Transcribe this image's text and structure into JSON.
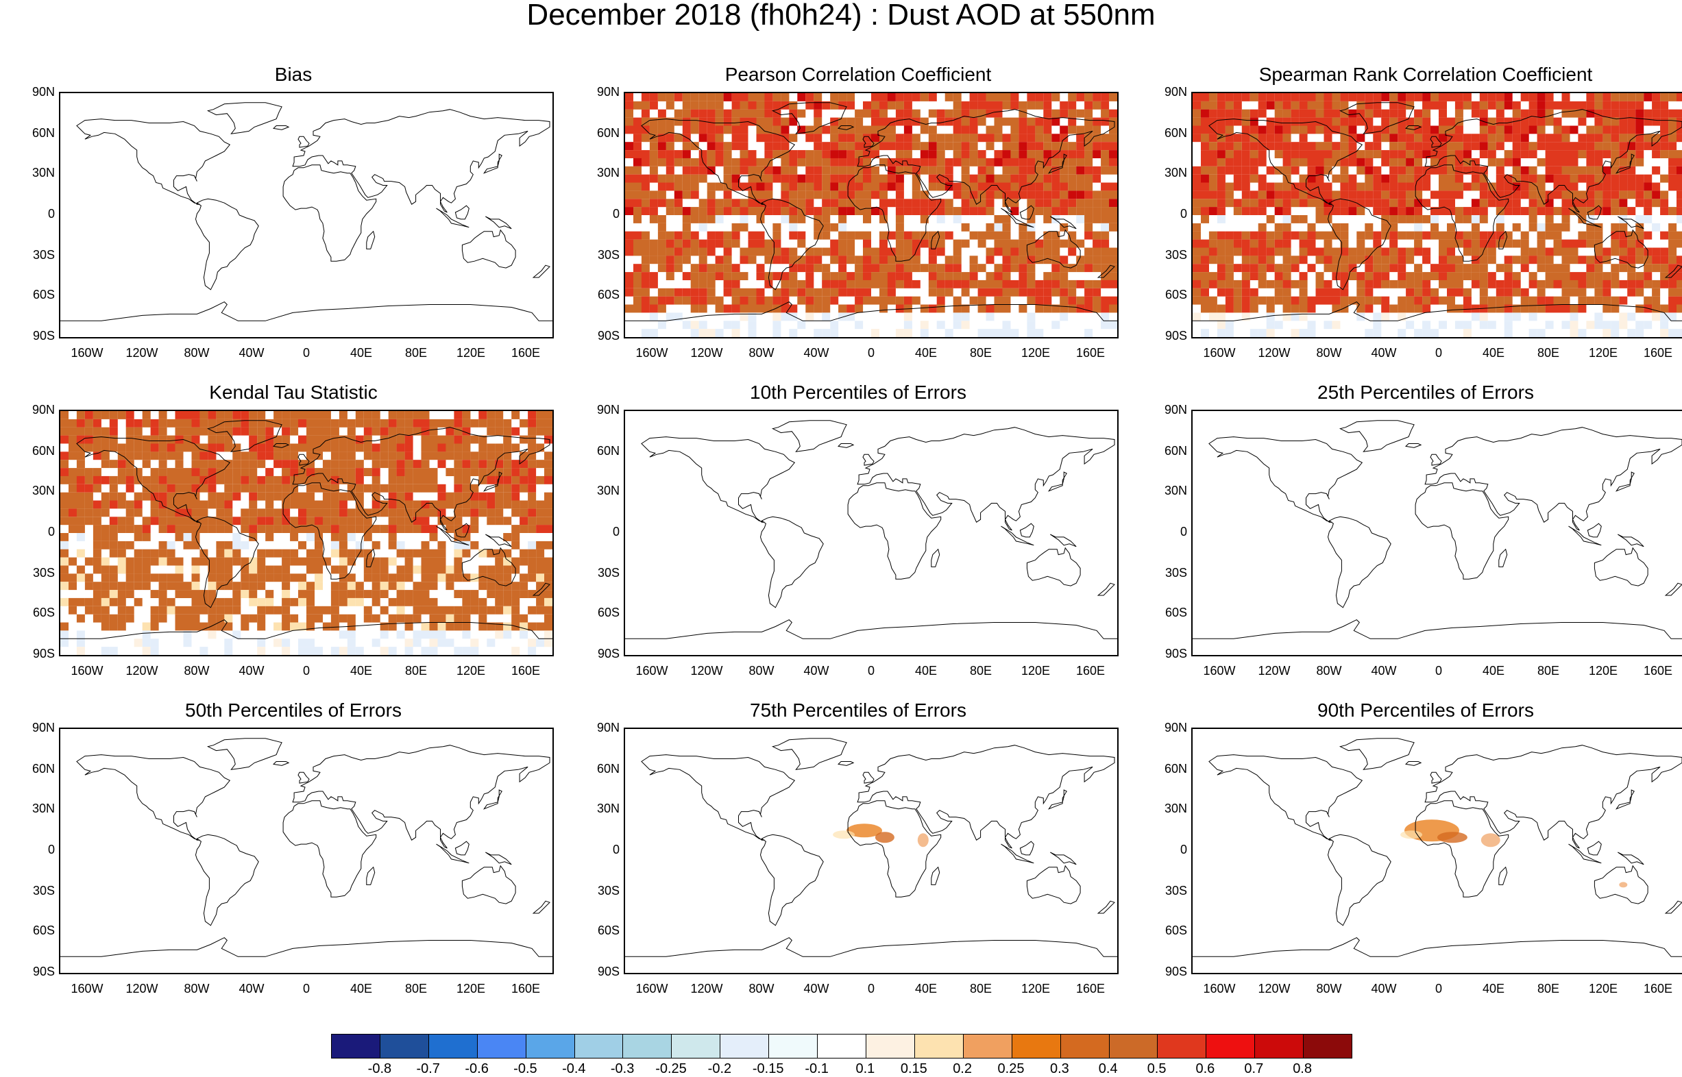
{
  "title": "December 2018 (fh0h24) : Dust AOD at 550nm",
  "lat_labels": [
    "90N",
    "60N",
    "30N",
    "0",
    "30S",
    "60S",
    "90S"
  ],
  "lon_labels": [
    "160W",
    "120W",
    "80W",
    "40W",
    "0",
    "40E",
    "80E",
    "120E",
    "160E"
  ],
  "panels": [
    {
      "title": "Bias",
      "pattern": "none"
    },
    {
      "title": "Pearson Correlation Coefficient",
      "pattern": "correlation"
    },
    {
      "title": "Spearman Rank Correlation Coefficient",
      "pattern": "correlation"
    },
    {
      "title": "Kendal Tau Statistic",
      "pattern": "kendall"
    },
    {
      "title": "10th Percentiles of Errors",
      "pattern": "none"
    },
    {
      "title": "25th Percentiles of Errors",
      "pattern": "none"
    },
    {
      "title": "50th Percentiles of Errors",
      "pattern": "none"
    },
    {
      "title": "75th Percentiles of Errors",
      "pattern": "dust"
    },
    {
      "title": "90th Percentiles of Errors",
      "pattern": "dust"
    }
  ],
  "colorbar": {
    "colors": [
      "#1a1a7a",
      "#1f4f9a",
      "#1f6fd0",
      "#4a86f4",
      "#5aa6e8",
      "#a0cfe6",
      "#a9d5e3",
      "#cfe8ec",
      "#e4eefa",
      "#f0fafc",
      "#ffffff",
      "#fdf1e2",
      "#fde2b0",
      "#f0a060",
      "#e87810",
      "#d46a20",
      "#cc6a28",
      "#e0381e",
      "#ee1010",
      "#cc0a0a",
      "#8c0a0a"
    ],
    "labels": [
      "-0.8",
      "-0.7",
      "-0.6",
      "-0.5",
      "-0.4",
      "-0.3",
      "-0.25",
      "-0.2",
      "-0.15",
      "-0.1",
      "0.1",
      "0.15",
      "0.2",
      "0.25",
      "0.3",
      "0.4",
      "0.5",
      "0.6",
      "0.7",
      "0.8"
    ]
  }
}
